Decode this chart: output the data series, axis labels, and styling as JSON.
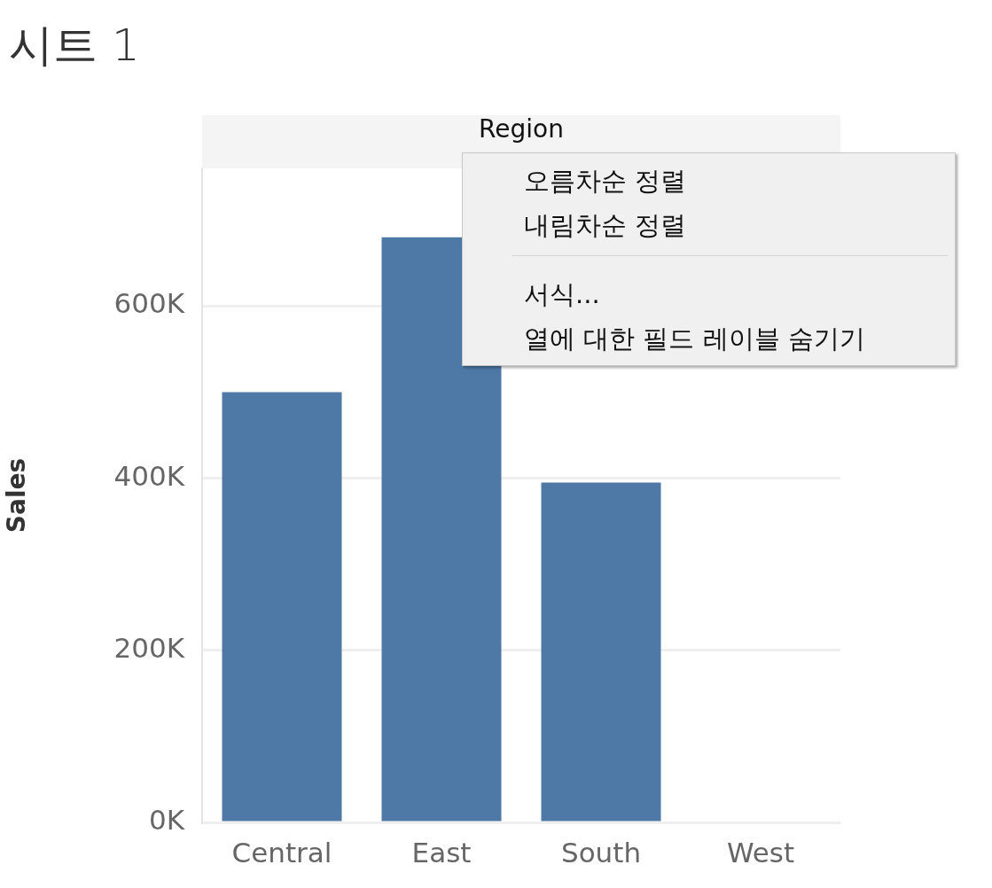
{
  "chart_data": {
    "type": "bar",
    "title": "시트 1",
    "xlabel": "Region",
    "ylabel": "Sales",
    "categories": [
      "Central",
      "East",
      "South",
      "West"
    ],
    "values": [
      500000,
      680000,
      395000,
      null
    ],
    "color": "#4e79a7",
    "ylim": [
      0,
      760000
    ],
    "yticks": [
      {
        "value": 0,
        "label": "0K"
      },
      {
        "value": 200000,
        "label": "200K"
      },
      {
        "value": 400000,
        "label": "400K"
      },
      {
        "value": 600000,
        "label": "600K"
      }
    ],
    "grid": "y",
    "annotations": [
      "오름차순 정렬",
      "내림차순 정렬",
      "서식...",
      "열에 대한 필드 레이블 숨기기"
    ]
  }
}
